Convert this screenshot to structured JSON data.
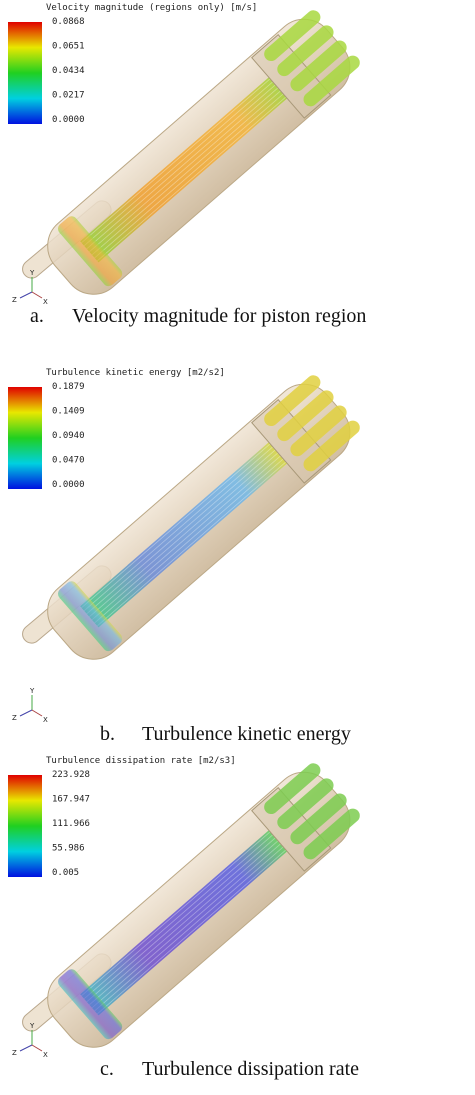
{
  "panels": [
    {
      "legend": {
        "title": "Velocity magnitude (regions only) [m/s]",
        "ticks": [
          "0.0868",
          "0.0651",
          "0.0434",
          "0.0217",
          "0.0000"
        ]
      },
      "axes": [
        "Y",
        "Z",
        "X"
      ],
      "caption": {
        "label": "a.",
        "text": "Velocity magnitude for piston region"
      }
    },
    {
      "legend": {
        "title": "Turbulence kinetic energy [m2/s2]",
        "ticks": [
          "0.1879",
          "0.1409",
          "0.0940",
          "0.0470",
          "0.0000"
        ]
      },
      "axes": [
        "Y",
        "Z",
        "X"
      ],
      "caption": {
        "label": "b.",
        "text": "Turbulence kinetic energy"
      }
    },
    {
      "legend": {
        "title": "Turbulence dissipation rate [m2/s3]",
        "ticks": [
          "223.928",
          "167.947",
          "111.966",
          "55.986",
          "0.005"
        ]
      },
      "axes": [
        "Y",
        "Z",
        "X"
      ],
      "caption": {
        "label": "c.",
        "text": "Turbulence dissipation rate"
      }
    }
  ]
}
